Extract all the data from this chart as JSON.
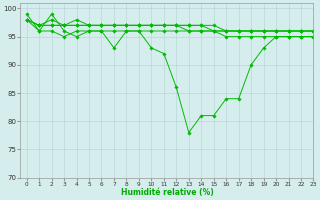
{
  "title": "",
  "xlabel": "Humidité relative (%)",
  "ylabel": "",
  "background_color": "#d5eeed",
  "grid_color": "#b8d8d8",
  "line_color": "#00bb00",
  "marker_color": "#00bb00",
  "xlim": [
    -0.5,
    23
  ],
  "ylim": [
    70,
    101
  ],
  "yticks": [
    70,
    75,
    80,
    85,
    90,
    95,
    100
  ],
  "xticks": [
    0,
    1,
    2,
    3,
    4,
    5,
    6,
    7,
    8,
    9,
    10,
    11,
    12,
    13,
    14,
    15,
    16,
    17,
    18,
    19,
    20,
    21,
    22,
    23
  ],
  "series": [
    [
      99,
      96,
      99,
      96,
      95,
      96,
      96,
      93,
      96,
      96,
      93,
      92,
      86,
      78,
      81,
      81,
      84,
      84,
      90,
      93,
      95,
      95,
      95,
      95
    ],
    [
      98,
      96,
      96,
      95,
      96,
      96,
      96,
      96,
      96,
      96,
      96,
      96,
      96,
      96,
      96,
      96,
      95,
      95,
      95,
      95,
      95,
      95,
      95,
      95
    ],
    [
      98,
      97,
      97,
      97,
      97,
      97,
      97,
      97,
      97,
      97,
      97,
      97,
      97,
      97,
      97,
      97,
      96,
      96,
      96,
      96,
      96,
      96,
      96,
      96
    ],
    [
      98,
      97,
      98,
      97,
      97,
      97,
      97,
      97,
      97,
      97,
      97,
      97,
      97,
      97,
      97,
      96,
      96,
      96,
      96,
      96,
      96,
      96,
      96,
      96
    ],
    [
      98,
      97,
      97,
      97,
      98,
      97,
      97,
      97,
      97,
      97,
      97,
      97,
      97,
      96,
      96,
      96,
      96,
      96,
      96,
      96,
      96,
      96,
      96,
      96
    ]
  ]
}
